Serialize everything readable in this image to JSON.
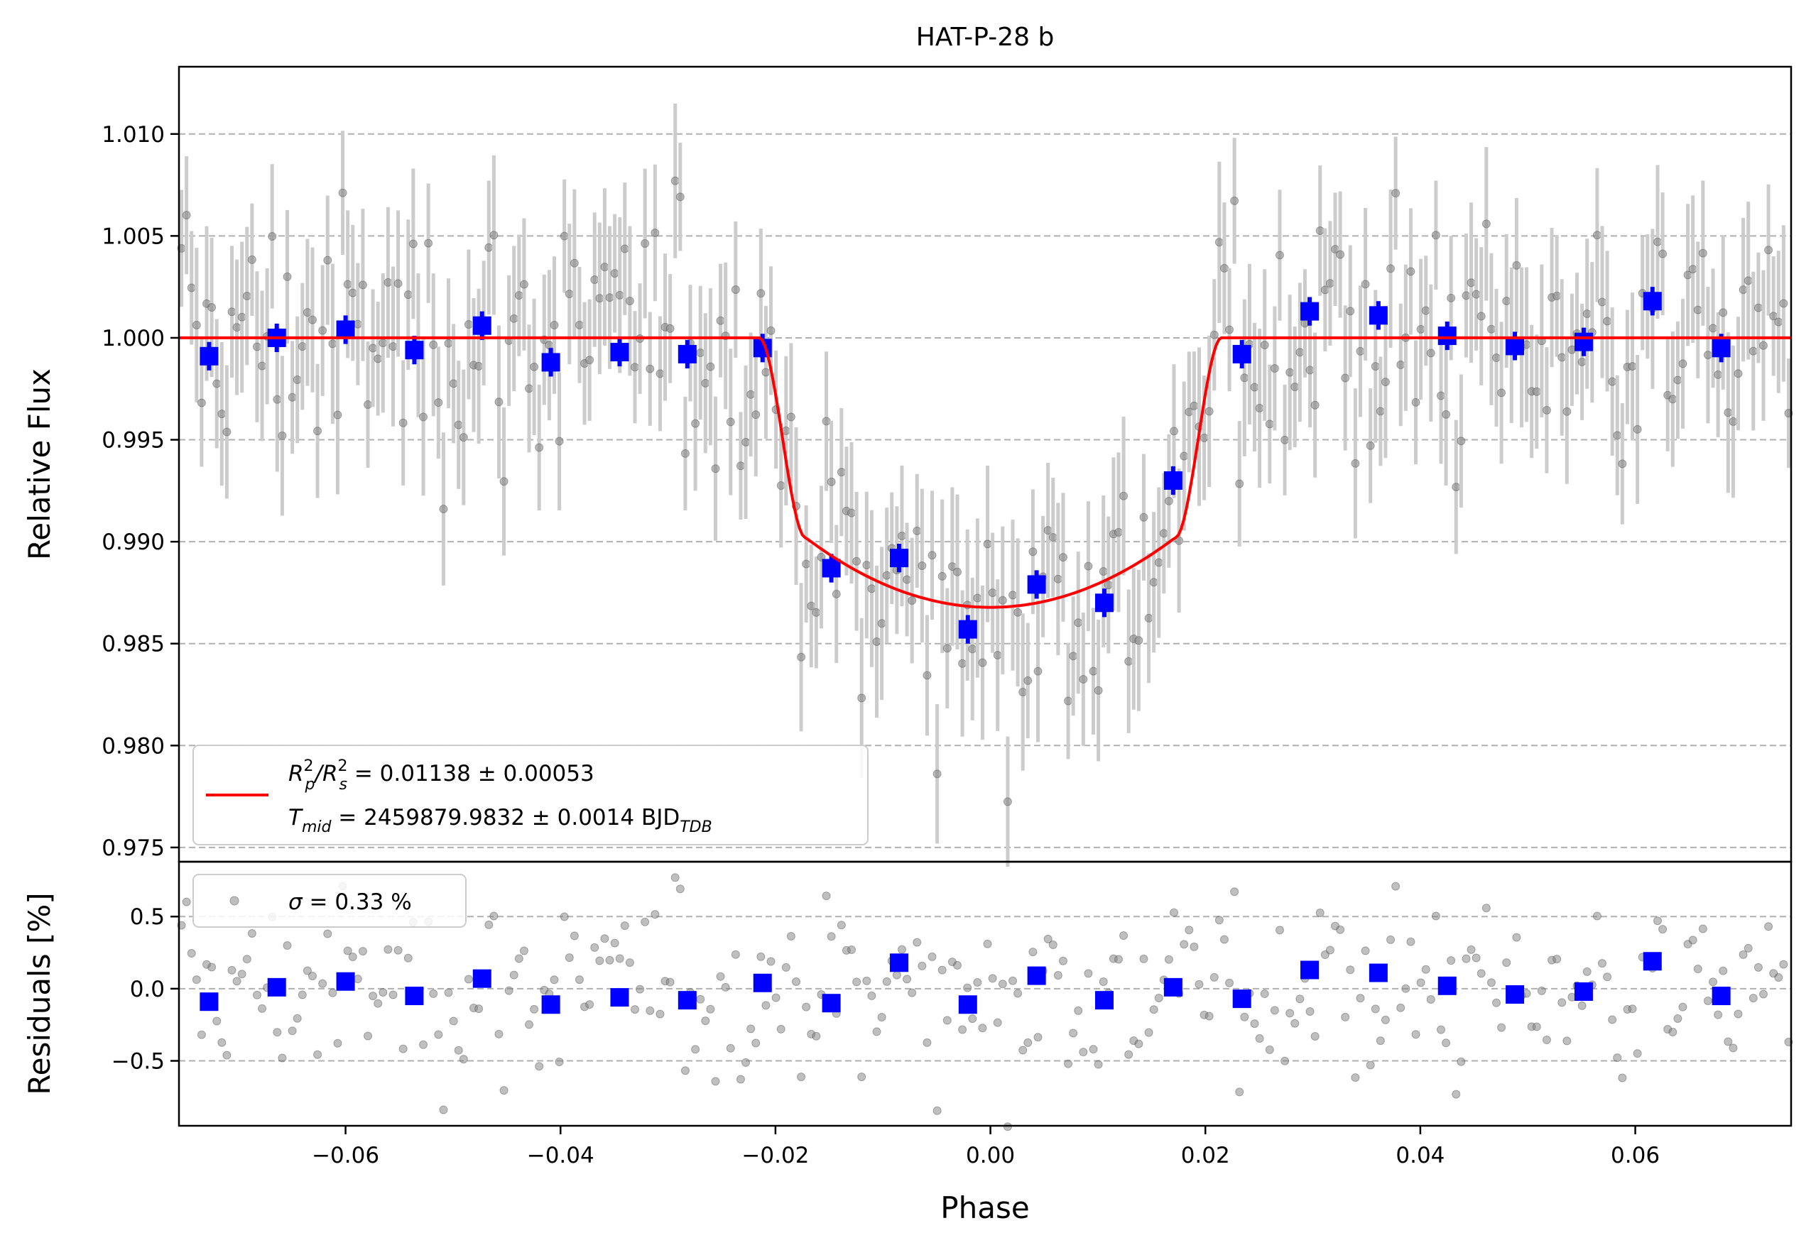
{
  "chart_data": [
    {
      "type": "scatter",
      "title": "HAT-P-28 b",
      "xlabel": "",
      "ylabel": "Relative Flux",
      "xlim": [
        -0.0755,
        0.0745
      ],
      "ylim": [
        0.9743,
        1.0133
      ],
      "yticks": [
        "0.975",
        "0.980",
        "0.985",
        "0.990",
        "0.995",
        "1.000",
        "1.005",
        "1.010"
      ],
      "ytick_values": [
        0.975,
        0.98,
        0.985,
        0.99,
        0.995,
        1.0,
        1.005,
        1.01
      ],
      "grid": "horizontal dashed",
      "legend": {
        "placement": "lower-left",
        "line1_main": "R",
        "line1_sup1": "2",
        "line1_sub1": "p",
        "line1_slash": "/R",
        "line1_sup2": "2",
        "line1_sub2": "s",
        "line1_value": " = 0.01138 ± 0.00053",
        "line2_main": "T",
        "line2_sub": "mid",
        "line2_value": " = 2459879.9832 ± 0.0014 BJD",
        "line2_unit_sub": "TDB"
      },
      "colors": {
        "raw": "#808080",
        "raw_err": "#cccccc",
        "binned": "#0000ff",
        "model": "#ff0000",
        "grid": "#b0b0b0"
      },
      "model": {
        "name": "transit model",
        "phase_start": -0.0755,
        "phase_end": 0.0745,
        "t1": -0.0215,
        "t2": -0.0172,
        "depth_min": 0.98678,
        "depth_edge": 0.9902
      },
      "binned": [
        {
          "x": -0.0727,
          "y": 0.9991
        },
        {
          "x": -0.0664,
          "y": 1.0
        },
        {
          "x": -0.06,
          "y": 1.0004
        },
        {
          "x": -0.0536,
          "y": 0.9994
        },
        {
          "x": -0.0473,
          "y": 1.0006
        },
        {
          "x": -0.0409,
          "y": 0.9988
        },
        {
          "x": -0.0345,
          "y": 0.9993
        },
        {
          "x": -0.0282,
          "y": 0.9992
        },
        {
          "x": -0.0212,
          "y": 0.9995
        },
        {
          "x": -0.0148,
          "y": 0.9887
        },
        {
          "x": -0.0085,
          "y": 0.9892
        },
        {
          "x": -0.0021,
          "y": 0.9857
        },
        {
          "x": 0.0043,
          "y": 0.9879
        },
        {
          "x": 0.0106,
          "y": 0.987
        },
        {
          "x": 0.017,
          "y": 0.993
        },
        {
          "x": 0.0234,
          "y": 0.9992
        },
        {
          "x": 0.0297,
          "y": 1.0013
        },
        {
          "x": 0.0361,
          "y": 1.0011
        },
        {
          "x": 0.0425,
          "y": 1.0001
        },
        {
          "x": 0.0488,
          "y": 0.9996
        },
        {
          "x": 0.0552,
          "y": 0.9998
        },
        {
          "x": 0.0616,
          "y": 1.0018
        },
        {
          "x": 0.068,
          "y": 0.9995
        }
      ],
      "binned_err": 0.0007,
      "raw_err": 0.0033
    },
    {
      "type": "scatter",
      "title": "",
      "xlabel": "Phase",
      "ylabel": "Residuals [%]",
      "xlim": [
        -0.0755,
        0.0745
      ],
      "ylim": [
        -0.95,
        0.88
      ],
      "yticks": [
        "−0.5",
        "0.0",
        "0.5"
      ],
      "ytick_values": [
        -0.5,
        0.0,
        0.5
      ],
      "xticks": [
        "−0.06",
        "−0.04",
        "−0.02",
        "0.00",
        "0.02",
        "0.04",
        "0.06"
      ],
      "xtick_values": [
        -0.06,
        -0.04,
        -0.02,
        0.0,
        0.02,
        0.04,
        0.06
      ],
      "grid": "horizontal dashed",
      "legend": {
        "placement": "top-left",
        "sigma_symbol": "σ",
        "label": " = 0.33 %"
      },
      "binned": [
        {
          "x": -0.0727,
          "y": -0.09
        },
        {
          "x": -0.0664,
          "y": 0.01
        },
        {
          "x": -0.06,
          "y": 0.05
        },
        {
          "x": -0.0536,
          "y": -0.05
        },
        {
          "x": -0.0473,
          "y": 0.07
        },
        {
          "x": -0.0409,
          "y": -0.11
        },
        {
          "x": -0.0345,
          "y": -0.06
        },
        {
          "x": -0.0282,
          "y": -0.08
        },
        {
          "x": -0.0212,
          "y": 0.04
        },
        {
          "x": -0.0148,
          "y": -0.1
        },
        {
          "x": -0.0085,
          "y": 0.18
        },
        {
          "x": -0.0021,
          "y": -0.11
        },
        {
          "x": 0.0043,
          "y": 0.09
        },
        {
          "x": 0.0106,
          "y": -0.08
        },
        {
          "x": 0.017,
          "y": 0.01
        },
        {
          "x": 0.0234,
          "y": -0.07
        },
        {
          "x": 0.0297,
          "y": 0.13
        },
        {
          "x": 0.0361,
          "y": 0.11
        },
        {
          "x": 0.0425,
          "y": 0.02
        },
        {
          "x": 0.0488,
          "y": -0.04
        },
        {
          "x": 0.0552,
          "y": -0.02
        },
        {
          "x": 0.0616,
          "y": 0.19
        },
        {
          "x": 0.068,
          "y": -0.05
        }
      ]
    }
  ]
}
